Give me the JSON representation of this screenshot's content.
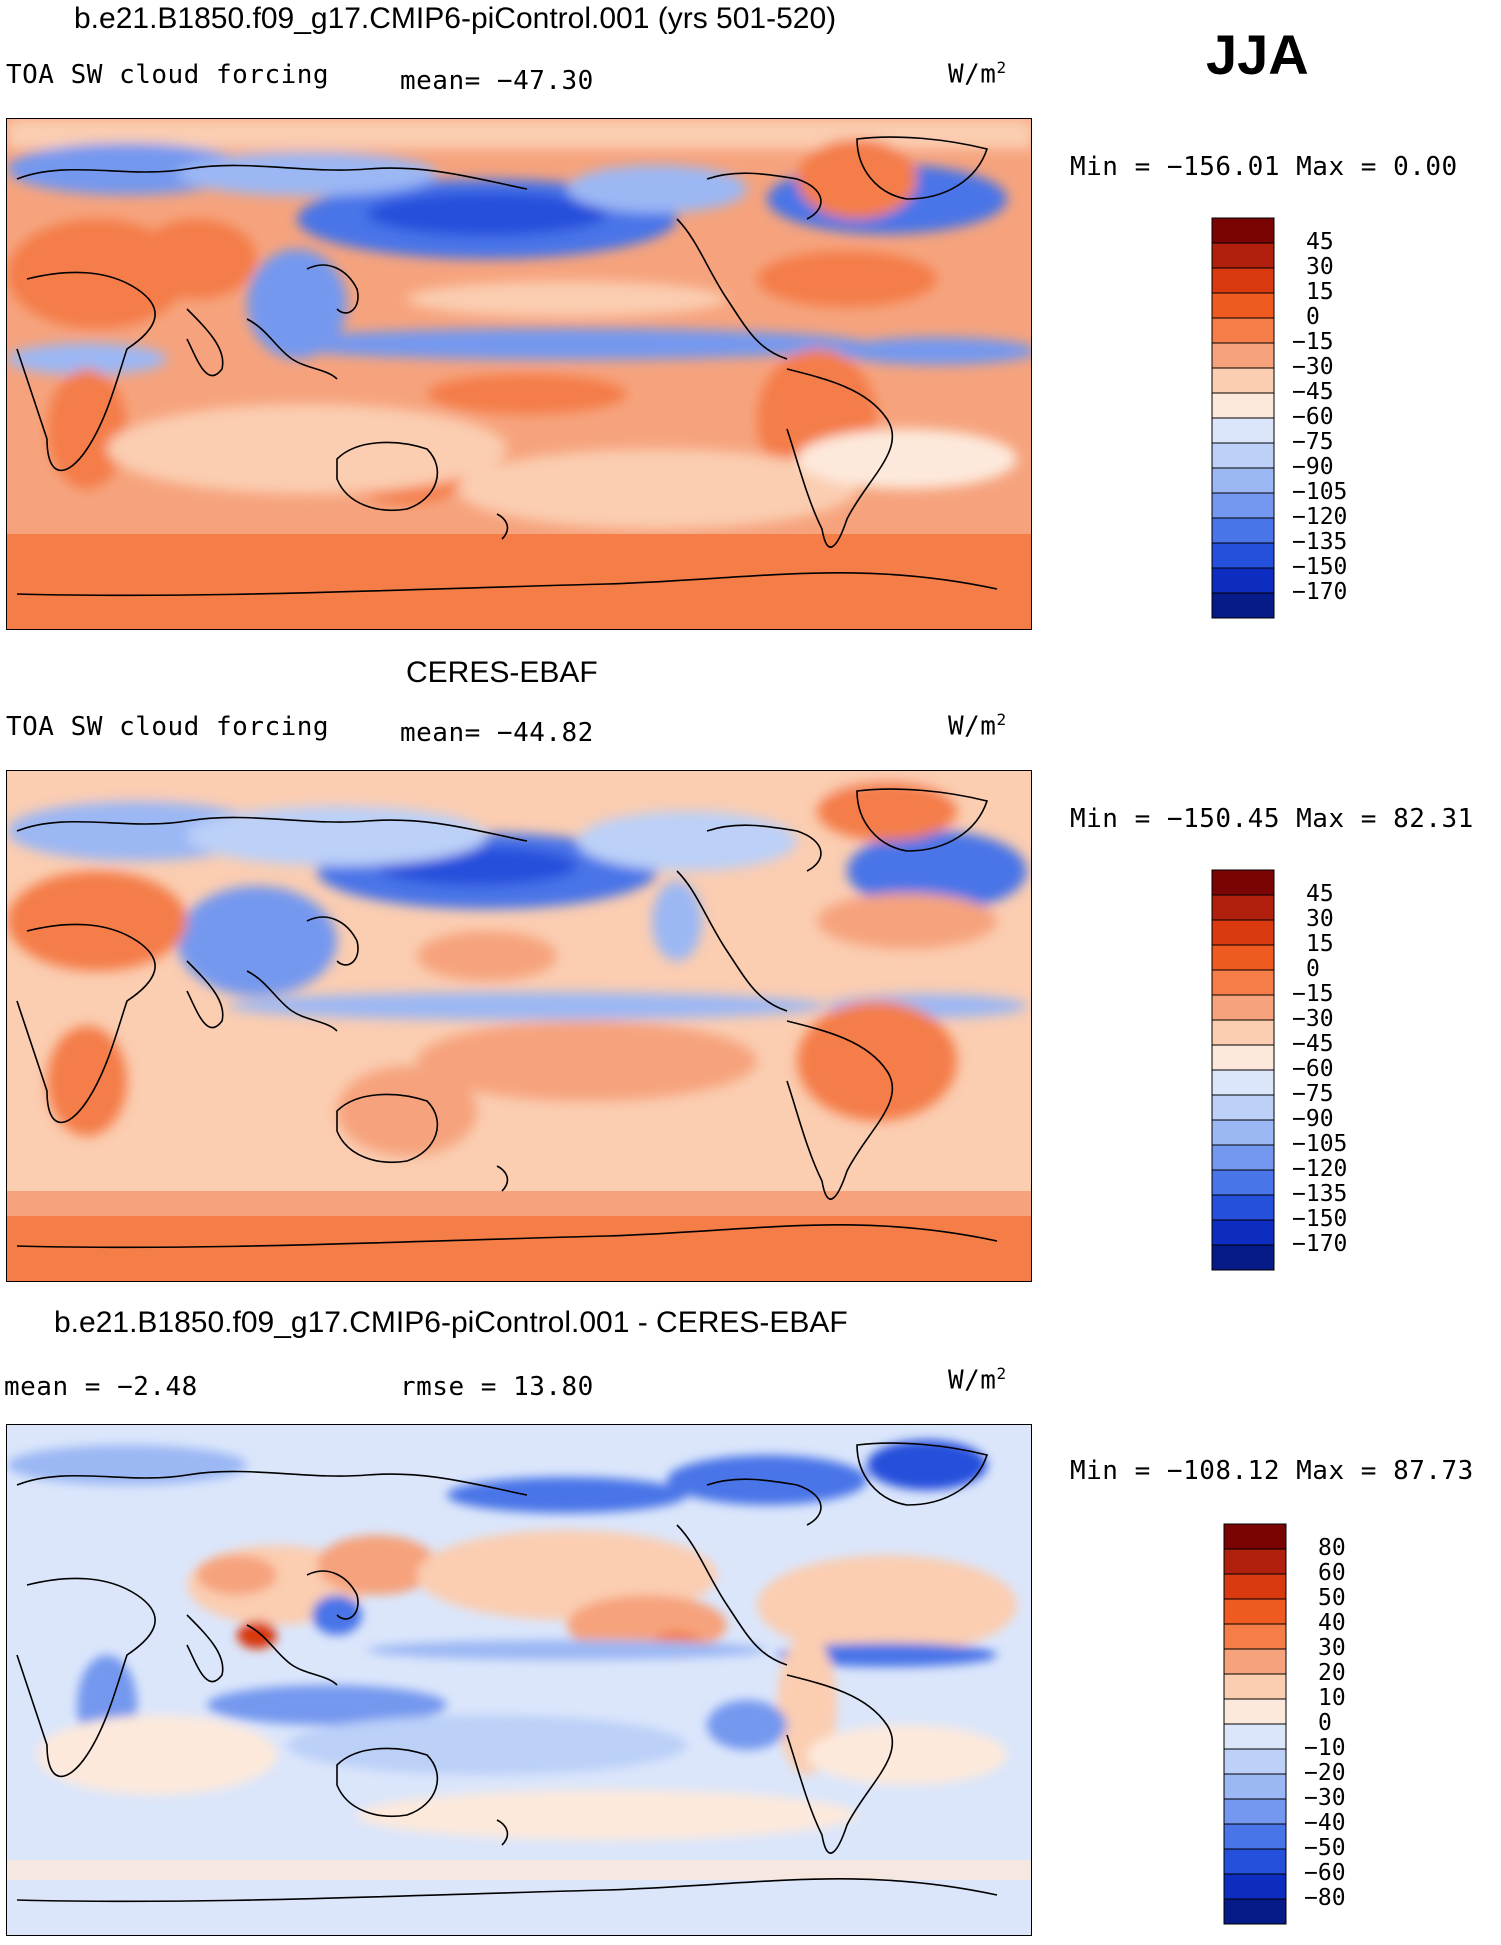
{
  "season": "JJA",
  "units_label": "W/m",
  "units_sup": "2",
  "panels": [
    {
      "title": "b.e21.B1850.f09_g17.CMIP6-piControl.001 (yrs 501-520)",
      "variable": "TOA SW cloud forcing",
      "stat": "mean= −47.30",
      "minmax": "Min  =  −156.01  Max  =     0.00"
    },
    {
      "title": "CERES-EBAF",
      "variable": "TOA SW cloud forcing",
      "stat": "mean= −44.82",
      "minmax": "Min  =  −150.45  Max  =   82.31"
    },
    {
      "title": "b.e21.B1850.f09_g17.CMIP6-piControl.001 - CERES-EBAF",
      "stat_mean": "mean  =   −2.48",
      "stat_rmse": "rmse  =   13.80",
      "minmax": "Min  =  −108.12  Max  =   87.73"
    }
  ],
  "chart_data": [
    {
      "type": "heatmap",
      "title": "b.e21.B1850.f09_g17.CMIP6-piControl.001 (yrs 501-520)",
      "variable": "TOA SW cloud forcing",
      "units": "W/m2",
      "mean": -47.3,
      "min": -156.01,
      "max": 0.0,
      "colorbar": {
        "levels": [
          "45",
          "30",
          "15",
          "0",
          "−15",
          "−30",
          "−45",
          "−60",
          "−75",
          "−90",
          "−105",
          "−120",
          "−135",
          "−150",
          "−170"
        ],
        "colors": [
          "#7a0403",
          "#b0200c",
          "#d8390f",
          "#ef5a21",
          "#f47d48",
          "#f6a37d",
          "#fbcdb1",
          "#fde9db",
          "#dbe6fb",
          "#bcd0f8",
          "#9bb7f4",
          "#7498ef",
          "#4a75e8",
          "#2550dc",
          "#0c2dc0",
          "#061a88"
        ]
      }
    },
    {
      "type": "heatmap",
      "title": "CERES-EBAF",
      "variable": "TOA SW cloud forcing",
      "units": "W/m2",
      "mean": -44.82,
      "min": -150.45,
      "max": 82.31,
      "colorbar": {
        "levels": [
          "45",
          "30",
          "15",
          "0",
          "−15",
          "−30",
          "−45",
          "−60",
          "−75",
          "−90",
          "−105",
          "−120",
          "−135",
          "−150",
          "−170"
        ],
        "colors": [
          "#7a0403",
          "#b0200c",
          "#d8390f",
          "#ef5a21",
          "#f47d48",
          "#f6a37d",
          "#fbcdb1",
          "#fde9db",
          "#dbe6fb",
          "#bcd0f8",
          "#9bb7f4",
          "#7498ef",
          "#4a75e8",
          "#2550dc",
          "#0c2dc0",
          "#061a88"
        ]
      }
    },
    {
      "type": "heatmap",
      "title": "b.e21.B1850.f09_g17.CMIP6-piControl.001 - CERES-EBAF",
      "units": "W/m2",
      "mean": -2.48,
      "rmse": 13.8,
      "min": -108.12,
      "max": 87.73,
      "colorbar": {
        "levels": [
          "80",
          "60",
          "50",
          "40",
          "30",
          "20",
          "10",
          "0",
          "−10",
          "−20",
          "−30",
          "−40",
          "−50",
          "−60",
          "−80"
        ],
        "colors": [
          "#7a0403",
          "#b0200c",
          "#d8390f",
          "#ef5a21",
          "#f47d48",
          "#f6a37d",
          "#fbcdb1",
          "#fde9db",
          "#dbe6fb",
          "#bcd0f8",
          "#9bb7f4",
          "#7498ef",
          "#4a75e8",
          "#2550dc",
          "#0c2dc0",
          "#061a88"
        ]
      }
    }
  ]
}
